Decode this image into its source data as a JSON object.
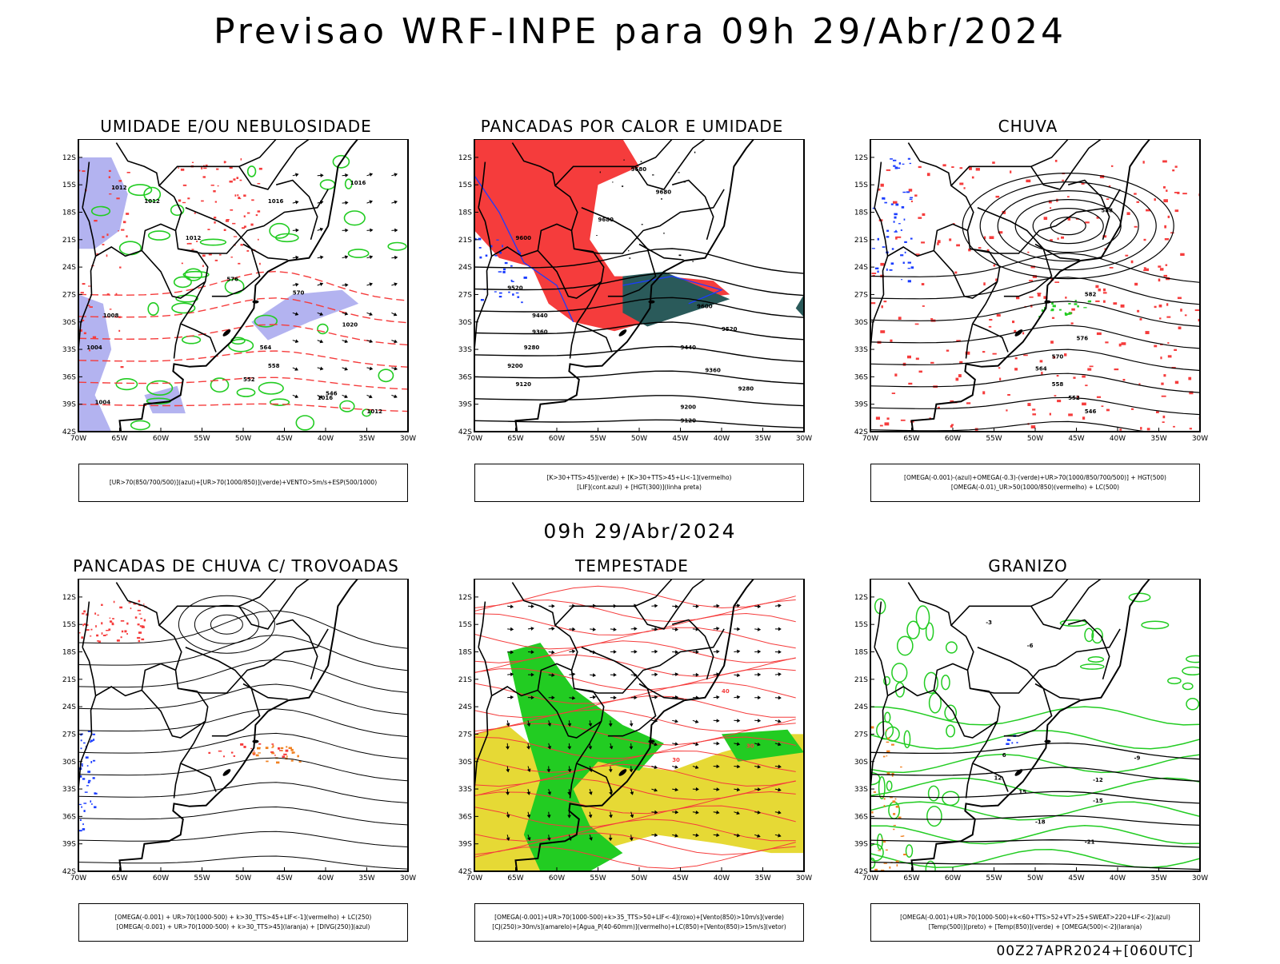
{
  "title": "Previsao WRF-INPE  para 09h 29/Abr/2024",
  "mid_title": "09h 29/Abr/2024",
  "footer": "00Z27APR2024+[060UTC]",
  "axes": {
    "lat_labels": [
      "12S",
      "15S",
      "18S",
      "21S",
      "24S",
      "27S",
      "30S",
      "33S",
      "36S",
      "39S",
      "42S"
    ],
    "lon_labels": [
      "70W",
      "65W",
      "60W",
      "55W",
      "50W",
      "45W",
      "40W",
      "35W",
      "30W"
    ]
  },
  "colors": {
    "blue_fill": "#b3b3f0",
    "red": "#f53c3c",
    "green": "#22cc22",
    "dark_teal": "#2a5a5a",
    "yellow": "#e6d935",
    "blue": "#1a3cff",
    "orange": "#f08020"
  },
  "panels": [
    {
      "id": "umidade",
      "title": "UMIDADE E/OU NEBULOSIDADE",
      "legend": [
        "[UR>70(850/700/500)](azul)+[UR>70(1000/850)](verde)+VENTO>5m/s+ESP(500/1000)"
      ],
      "contour_labels": [
        "1012",
        "1012",
        "1016",
        "1016",
        "1012",
        "1008",
        "1004",
        "1004",
        "1016",
        "1012",
        "564",
        "558",
        "552",
        "546",
        "570",
        "576",
        "1020"
      ]
    },
    {
      "id": "pancadas_calor",
      "title": "PANCADAS POR CALOR E UMIDADE",
      "legend": [
        "[K>30+TTS>45](verde) + [K>30+TTS>45+LI<-1](vermelho)",
        "[LIF](cont.azul) + [HGT(300)](linha preta)"
      ],
      "contour_labels": [
        "9680",
        "9680",
        "9680",
        "9600",
        "9520",
        "9440",
        "9360",
        "9280",
        "9200",
        "9120",
        "9600",
        "9520",
        "9440",
        "9360",
        "9280",
        "9200",
        "9120"
      ]
    },
    {
      "id": "chuva",
      "title": "CHUVA",
      "legend": [
        "[OMEGA(-0.001)-(azul)+OMEGA(-0.3)-(verde)+UR>70(1000/850/700/500)] + HGT(500)",
        "[OMEGA(-0.01)_UR>50(1000/850)(vermelho) + LC(500)"
      ],
      "contour_labels": [
        "588",
        "582",
        "576",
        "570",
        "564",
        "558",
        "552",
        "546"
      ]
    },
    {
      "id": "pancadas_trovoadas",
      "title": "PANCADAS DE CHUVA C/ TROVOADAS",
      "legend": [
        "[OMEGA(-0.001) + UR>70(1000-500) + k>30_TTS>45+LIF<-1](vermelho) + LC(250)",
        "[OMEGA(-0.001) + UR>70(1000-500) + k>30_TTS>45](laranja) + [DIVG(250)](azul)"
      ],
      "contour_labels": []
    },
    {
      "id": "tempestade",
      "title": "TEMPESTADE",
      "legend": [
        "[OMEGA(-0.001)+UR>70(1000-500)+k>35_TTS>50+LIF<-4](roxo)+[Vento(850)>10m/s](verde)",
        "[CJ(250)>30m/s](amarelo)+[Agua_P(40-60mm)](vermelho)+LC(850)+[Vento(850)>15m/s](vetor)"
      ],
      "contour_labels": [
        "40",
        "30",
        "30"
      ]
    },
    {
      "id": "granizo",
      "title": "GRANIZO",
      "legend": [
        "[OMEGA(-0.001)+UR>70(1000-500)+k<60+TTS>52+VT>25+SWEAT>220+LIF<-2](azul)",
        "[Temp(500)](preto) + [Temp(850)](verde) + [OMEGA(500)<-2](laranja)"
      ],
      "contour_labels": [
        "-3",
        "-6",
        "-9",
        "-12",
        "-15",
        "-18",
        "-21",
        "6",
        "12",
        "15"
      ]
    }
  ]
}
